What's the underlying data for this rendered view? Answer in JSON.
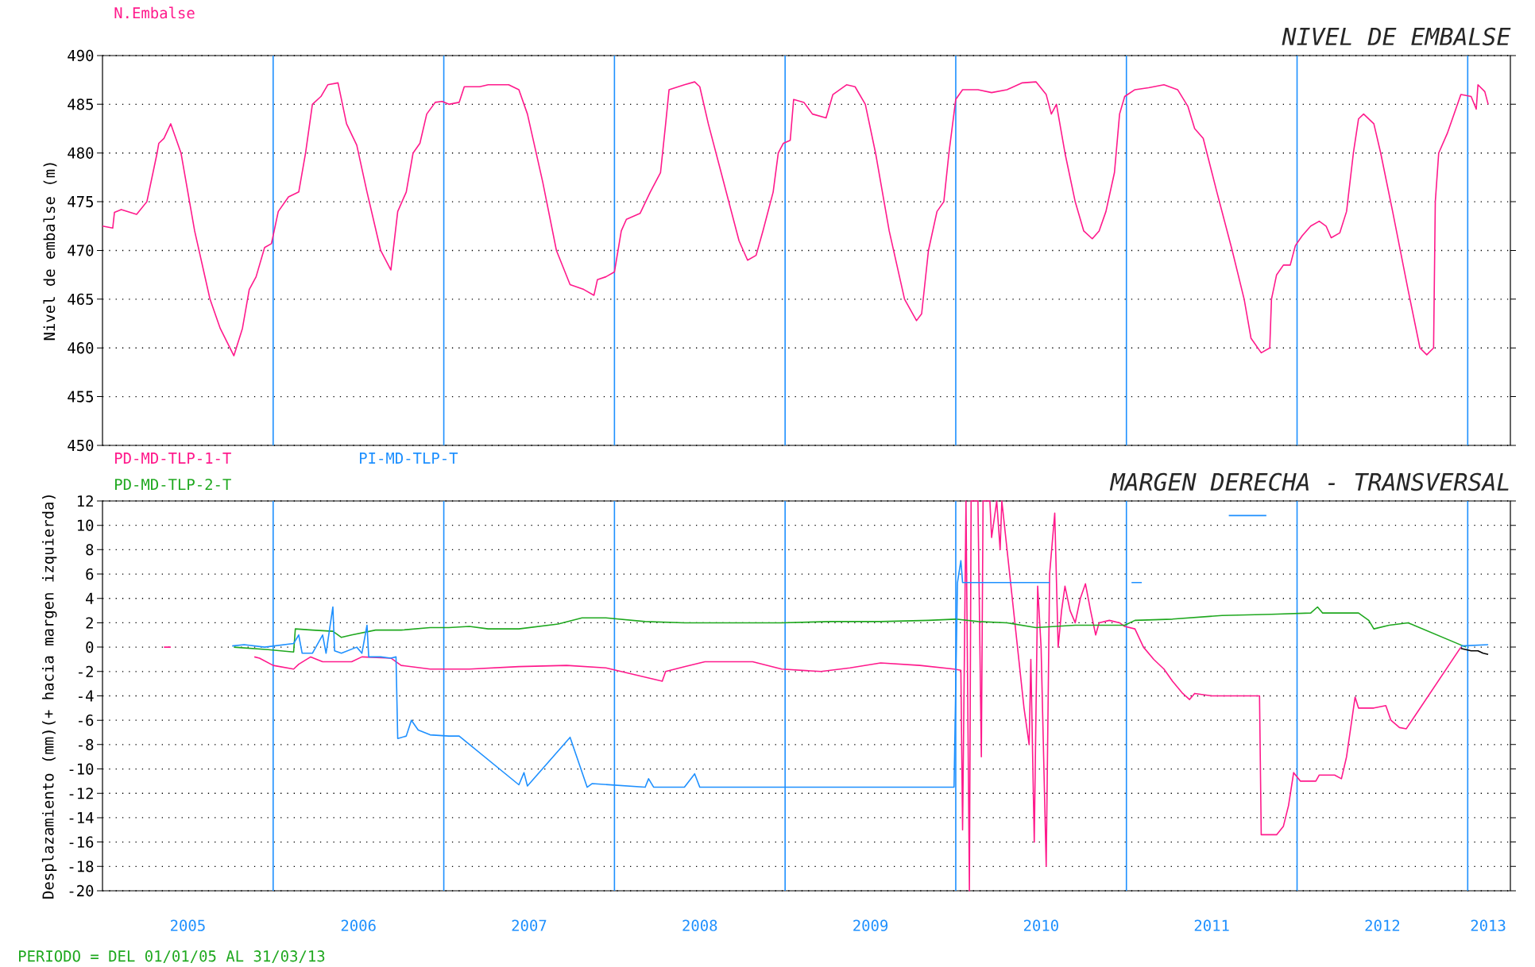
{
  "chart_data": [
    {
      "type": "line",
      "title": "NIVEL DE EMBALSE",
      "ylabel": "Nivel de embalse (m)",
      "xlim": [
        2005,
        2013.25
      ],
      "ylim": [
        450,
        490
      ],
      "yticks": [
        450,
        455,
        460,
        465,
        470,
        475,
        480,
        485,
        490
      ],
      "tick_labels": "y",
      "grid": "y",
      "legend": "top left",
      "ref_lines": [
        {
          "axis": "x",
          "value": 2006,
          "color": "#1e90ff"
        },
        {
          "axis": "x",
          "value": 2007,
          "color": "#1e90ff"
        },
        {
          "axis": "x",
          "value": 2008,
          "color": "#1e90ff"
        },
        {
          "axis": "x",
          "value": 2009,
          "color": "#1e90ff"
        },
        {
          "axis": "x",
          "value": 2010,
          "color": "#1e90ff"
        },
        {
          "axis": "x",
          "value": 2011,
          "color": "#1e90ff"
        },
        {
          "axis": "x",
          "value": 2012,
          "color": "#1e90ff"
        },
        {
          "axis": "x",
          "value": 2013,
          "color": "#1e90ff"
        }
      ],
      "series": [
        {
          "name": "N.Embalse",
          "color": "#ff1a8c",
          "x": [
            2005.0,
            2005.06,
            2005.07,
            2005.11,
            2005.2,
            2005.26,
            2005.32,
            2005.33,
            2005.36,
            2005.4,
            2005.46,
            2005.54,
            2005.63,
            2005.69,
            2005.77,
            2005.82,
            2005.86,
            2005.9,
            2005.95,
            2005.99,
            2006.03,
            2006.09,
            2006.15,
            2006.19,
            2006.23,
            2006.28,
            2006.32,
            2006.38,
            2006.43,
            2006.49,
            2006.55,
            2006.63,
            2006.69,
            2006.73,
            2006.78,
            2006.82,
            2006.86,
            2006.9,
            2006.95,
            2006.99,
            2007.03,
            2007.09,
            2007.12,
            2007.21,
            2007.26,
            2007.38,
            2007.44,
            2007.49,
            2007.58,
            2007.66,
            2007.74,
            2007.82,
            2007.88,
            2007.9,
            2007.95,
            2008.0,
            2008.04,
            2008.07,
            2008.15,
            2008.21,
            2008.27,
            2008.3,
            2008.32,
            2008.41,
            2008.47,
            2008.5,
            2008.55,
            2008.64,
            2008.73,
            2008.78,
            2008.83,
            2008.87,
            2008.93,
            2008.96,
            2008.99,
            2009.03,
            2009.05,
            2009.11,
            2009.16,
            2009.24,
            2009.28,
            2009.36,
            2009.41,
            2009.47,
            2009.53,
            2009.61,
            2009.7,
            2009.77,
            2009.8,
            2009.84,
            2009.89,
            2009.93,
            2009.96,
            2010.0,
            2010.04,
            2010.13,
            2010.21,
            2010.3,
            2010.39,
            2010.47,
            2010.53,
            2010.56,
            2010.59,
            2010.64,
            2010.7,
            2010.75,
            2010.8,
            2010.84,
            2010.88,
            2010.93,
            2010.96,
            2010.99,
            2011.05,
            2011.13,
            2011.22,
            2011.3,
            2011.36,
            2011.4,
            2011.45,
            2011.53,
            2011.62,
            2011.69,
            2011.73,
            2011.79,
            2011.84,
            2011.85,
            2011.88,
            2011.92,
            2011.96,
            2011.99,
            2012.03,
            2012.08,
            2012.13,
            2012.17,
            2012.2,
            2012.25,
            2012.29,
            2012.33,
            2012.36,
            2012.39,
            2012.45,
            2012.49,
            2012.56,
            2012.65,
            2012.72,
            2012.76,
            2012.8,
            2012.81,
            2012.83,
            2012.88,
            2012.93,
            2012.96,
            2013.02,
            2013.05,
            2013.06,
            2013.1,
            2013.12
          ],
          "values": [
            472.5,
            472.3,
            473.9,
            474.2,
            473.7,
            475,
            480,
            481,
            481.5,
            483,
            480,
            472,
            465,
            462,
            459.2,
            462,
            466,
            467.3,
            470.3,
            470.7,
            474,
            475.5,
            476,
            480,
            485,
            485.8,
            487,
            487.2,
            483,
            480.8,
            476,
            470,
            468,
            474,
            476,
            480,
            481,
            484,
            485.2,
            485.3,
            485,
            485.2,
            486.8,
            486.8,
            487,
            487,
            486.5,
            484,
            477,
            470,
            466.5,
            466,
            465.4,
            467,
            467.3,
            467.8,
            472,
            473.2,
            473.8,
            476,
            478,
            483,
            486.5,
            487,
            487.3,
            486.8,
            483,
            477,
            471,
            469,
            469.5,
            472,
            476,
            480,
            481,
            481.3,
            485.5,
            485.2,
            484,
            483.6,
            486,
            487,
            486.8,
            485,
            480,
            472,
            465,
            462.8,
            463.5,
            470,
            474,
            475,
            480,
            485.5,
            486.5,
            486.5,
            486.2,
            486.5,
            487.2,
            487.3,
            486,
            484,
            485,
            480,
            475,
            472,
            471.2,
            472,
            474,
            478,
            484,
            485.8,
            486.5,
            486.7,
            487,
            486.5,
            484.8,
            482.5,
            481.5,
            476,
            470,
            465,
            461,
            459.5,
            460,
            465,
            467.5,
            468.5,
            468.5,
            470.5,
            471.5,
            472.5,
            473,
            472.5,
            471.3,
            471.8,
            474,
            480,
            483.5,
            484,
            483,
            480,
            474,
            466,
            460,
            459.3,
            460,
            475,
            480,
            482,
            484.5,
            486,
            485.8,
            484.5,
            487,
            486.3,
            485
          ]
        }
      ]
    },
    {
      "type": "line",
      "title": "MARGEN DERECHA - TRANSVERSAL",
      "ylabel": "Desplazamiento (mm)(+ hacia margen izquierda)",
      "xlim": [
        2005,
        2013.25
      ],
      "ylim": [
        -20,
        12
      ],
      "yticks": [
        -20,
        -18,
        -16,
        -14,
        -12,
        -10,
        -8,
        -6,
        -4,
        -2,
        0,
        2,
        4,
        6,
        8,
        10,
        12
      ],
      "xticks": [
        {
          "value": 2005.5,
          "label": "2005"
        },
        {
          "value": 2006.5,
          "label": "2006"
        },
        {
          "value": 2007.5,
          "label": "2007"
        },
        {
          "value": 2008.5,
          "label": "2008"
        },
        {
          "value": 2009.5,
          "label": "2009"
        },
        {
          "value": 2010.5,
          "label": "2010"
        },
        {
          "value": 2011.5,
          "label": "2011"
        },
        {
          "value": 2012.5,
          "label": "2012"
        },
        {
          "value": 2013.12,
          "label": "2013"
        }
      ],
      "grid": "y",
      "legend": "top left",
      "annotations": [
        "PERIODO = DEL 01/01/05 AL 31/03/13"
      ],
      "ref_lines": [
        {
          "axis": "x",
          "value": 2006,
          "color": "#1e90ff"
        },
        {
          "axis": "x",
          "value": 2007,
          "color": "#1e90ff"
        },
        {
          "axis": "x",
          "value": 2008,
          "color": "#1e90ff"
        },
        {
          "axis": "x",
          "value": 2009,
          "color": "#1e90ff"
        },
        {
          "axis": "x",
          "value": 2010,
          "color": "#1e90ff"
        },
        {
          "axis": "x",
          "value": 2011,
          "color": "#1e90ff"
        },
        {
          "axis": "x",
          "value": 2012,
          "color": "#1e90ff"
        },
        {
          "axis": "x",
          "value": 2013,
          "color": "#1e90ff"
        }
      ],
      "series": [
        {
          "name": "PD-MD-TLP-1-T",
          "color": "#ff1a8c",
          "x": [
            2005.36,
            2005.4,
            2005.5,
            2005.89,
            2005.92,
            2006.0,
            2006.12,
            2006.15,
            2006.22,
            2006.29,
            2006.46,
            2006.52,
            2006.69,
            2006.75,
            2006.92,
            2007.15,
            2007.44,
            2007.72,
            2007.95,
            2008.28,
            2008.3,
            2008.41,
            2008.53,
            2008.81,
            2008.98,
            2009.21,
            2009.38,
            2009.56,
            2009.79,
            2009.99,
            2010.03,
            2010.04,
            2010.06,
            2010.08,
            2010.09,
            2010.13,
            2010.15,
            2010.16,
            2010.2,
            2010.21,
            2010.24,
            2010.26,
            2010.27,
            2010.4,
            2010.43,
            2010.44,
            2010.46,
            2010.48,
            2010.5,
            2010.53,
            2010.55,
            2010.58,
            2010.6,
            2010.62,
            2010.64,
            2010.67,
            2010.7,
            2010.73,
            2010.76,
            2010.79,
            2010.82,
            2010.84,
            2010.9,
            2010.96,
            2010.99,
            2011.05,
            2011.1,
            2011.16,
            2011.22,
            2011.27,
            2011.33,
            2011.37,
            2011.4,
            2011.5,
            2011.78,
            2011.79,
            2011.88,
            2011.92,
            2011.95,
            2011.98,
            2012.02,
            2012.11,
            2012.13,
            2012.22,
            2012.26,
            2012.29,
            2012.34,
            2012.36,
            2012.45,
            2012.52,
            2012.55,
            2012.6,
            2012.64,
            2012.96
          ],
          "values": [
            0,
            0,
            null,
            -0.8,
            -0.9,
            -1.5,
            -1.8,
            -1.4,
            -0.8,
            -1.2,
            -1.2,
            -0.8,
            -0.9,
            -1.5,
            -1.8,
            -1.8,
            -1.6,
            -1.5,
            -1.7,
            -2.8,
            -2.0,
            -1.6,
            -1.2,
            -1.2,
            -1.8,
            -2.0,
            -1.7,
            -1.3,
            -1.5,
            -1.8,
            -1.9,
            -15,
            12,
            -20,
            12,
            12,
            -9,
            12,
            12,
            9,
            12,
            8,
            12,
            -5,
            -8,
            -1,
            -16,
            5,
            0,
            -18,
            6,
            11,
            0,
            3,
            5,
            3,
            2,
            4,
            5.2,
            3,
            1,
            2,
            2.2,
            2,
            1.7,
            1.5,
            0,
            -1,
            -1.8,
            -2.8,
            -3.8,
            -4.3,
            -3.8,
            -4,
            -4,
            -15.4,
            -15.4,
            -14.7,
            -13,
            -10.3,
            -11,
            -11,
            -10.5,
            -10.5,
            -10.8,
            -9,
            -4.1,
            -5,
            -5,
            -4.8,
            -6,
            -6.6,
            -6.7,
            0
          ]
        },
        {
          "name": "PD-MD-TLP-2-T",
          "color": "#1fa81f",
          "x": [
            2005.77,
            2005.97,
            2006.12,
            2006.13,
            2006.23,
            2006.35,
            2006.4,
            2006.46,
            2006.6,
            2006.75,
            2006.92,
            2007.03,
            2007.15,
            2007.26,
            2007.44,
            2007.67,
            2007.81,
            2007.95,
            2008.18,
            2008.41,
            2008.7,
            2008.98,
            2009.27,
            2009.56,
            2009.84,
            2010.0,
            2010.13,
            2010.3,
            2010.47,
            2010.7,
            2010.99,
            2011.05,
            2011.27,
            2011.56,
            2011.85,
            2012.08,
            2012.12,
            2012.15,
            2012.36,
            2012.42,
            2012.45,
            2012.54,
            2012.65,
            2012.99
          ],
          "values": [
            0,
            -0.2,
            -0.4,
            1.5,
            1.4,
            1.3,
            0.8,
            1.0,
            1.4,
            1.4,
            1.6,
            1.6,
            1.7,
            1.5,
            1.5,
            1.9,
            2.4,
            2.4,
            2.1,
            2.0,
            2.0,
            2.0,
            2.1,
            2.1,
            2.2,
            2.3,
            2.1,
            2.0,
            1.6,
            1.8,
            1.8,
            2.2,
            2.3,
            2.6,
            2.7,
            2.8,
            3.3,
            2.8,
            2.8,
            2.2,
            1.5,
            1.8,
            2.0,
            0
          ]
        },
        {
          "name": "PI-MD-TLP-T",
          "color": "#1e90ff",
          "x": [
            2005.76,
            2005.83,
            2005.95,
            2006.12,
            2006.15,
            2006.17,
            2006.23,
            2006.29,
            2006.31,
            2006.35,
            2006.36,
            2006.4,
            2006.49,
            2006.52,
            2006.55,
            2006.56,
            2006.63,
            2006.69,
            2006.72,
            2006.73,
            2006.78,
            2006.81,
            2006.85,
            2006.92,
            2007.03,
            2007.09,
            2007.44,
            2007.47,
            2007.49,
            2007.74,
            2007.84,
            2007.87,
            2008.18,
            2008.2,
            2008.23,
            2008.41,
            2008.47,
            2008.5,
            2009.99,
            2010.01,
            2010.03,
            2010.04,
            2010.55,
            2010.7,
            2011.03,
            2011.09,
            2011.27,
            2011.6,
            2011.82,
            2012.42,
            2012.96,
            2013.12
          ],
          "values": [
            0.1,
            0.2,
            0,
            0.3,
            1.0,
            -0.5,
            -0.5,
            1.0,
            -0.5,
            3.3,
            -0.3,
            -0.5,
            0,
            -0.5,
            1.8,
            -0.8,
            -0.8,
            -0.9,
            -0.8,
            -7.5,
            -7.3,
            -6,
            -6.8,
            -7.2,
            -7.3,
            -7.3,
            -11.3,
            -10.3,
            -11.4,
            -7.4,
            -11.5,
            -11.2,
            -11.5,
            -10.8,
            -11.5,
            -11.5,
            -10.4,
            -11.5,
            -11.5,
            5.3,
            7.1,
            5.3,
            5.3,
            null,
            5.3,
            5.3,
            null,
            10.8,
            10.8,
            null,
            0.1,
            0.2
          ]
        },
        {
          "color": "#000000",
          "x": [
            2012.96,
            2013.02,
            2013.06,
            2013.09,
            2013.12
          ],
          "values": [
            -0.1,
            -0.3,
            -0.3,
            -0.5,
            -0.6
          ]
        }
      ]
    }
  ]
}
